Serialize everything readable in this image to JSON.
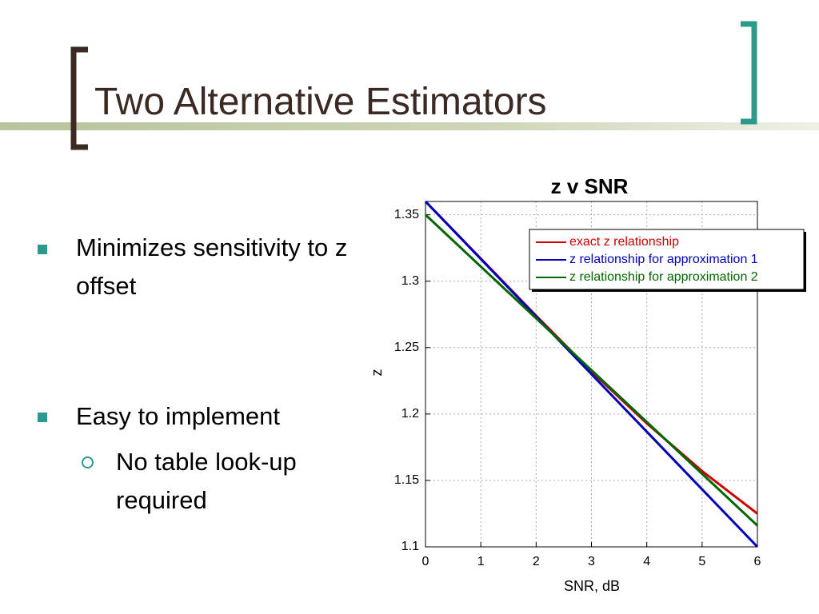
{
  "header": {
    "title": "Two Alternative Estimators"
  },
  "bullets": [
    {
      "text": "Minimizes sensitivity to z offset",
      "sub": []
    },
    {
      "text": "Easy to implement",
      "sub": [
        "No table look-up required"
      ]
    }
  ],
  "chart_data": {
    "type": "line",
    "title": "z v SNR",
    "xlabel": "SNR, dB",
    "ylabel": "z",
    "x": [
      0,
      1,
      2,
      3,
      4,
      5,
      6
    ],
    "series": [
      {
        "name": "exact z relationship",
        "color": "#cc0000",
        "values": [
          1.36,
          1.317,
          1.274,
          1.232,
          1.193,
          1.157,
          1.125
        ]
      },
      {
        "name": "z relationship for approximation 1",
        "color": "#0000bb",
        "values": [
          1.36,
          1.3167,
          1.2733,
          1.23,
          1.1867,
          1.1433,
          1.1
        ]
      },
      {
        "name": "z relationship for approximation 2",
        "color": "#006600",
        "values": [
          1.35,
          1.311,
          1.272,
          1.233,
          1.194,
          1.155,
          1.116
        ]
      }
    ],
    "xlim": [
      0,
      6
    ],
    "xticks": [
      0,
      1,
      2,
      3,
      4,
      5,
      6
    ],
    "ylim": [
      1.1,
      1.36
    ],
    "yticks": [
      1.1,
      1.15,
      1.2,
      1.25,
      1.3,
      1.35
    ],
    "grid": true,
    "legend": "upper right"
  }
}
